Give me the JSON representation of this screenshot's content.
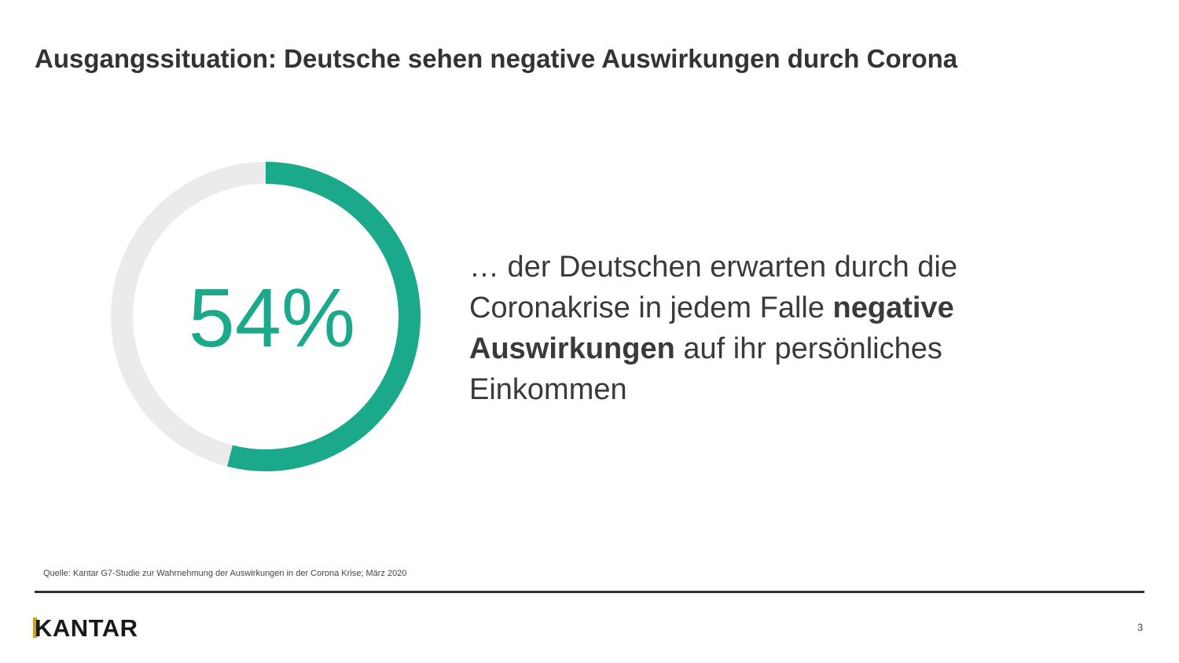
{
  "title": "Ausgangssituation: Deutsche sehen negative Auswirkungen durch Corona",
  "chart_data": {
    "type": "donut",
    "values": [
      54
    ],
    "value_labels": [
      "54%"
    ],
    "color": "#1aa98a",
    "track_color": "#ebebeb"
  },
  "text": {
    "lines": [
      [
        {
          "text": "… der Deutschen erwarten durch die",
          "bold": false
        }
      ],
      [
        {
          "text": "Coronakrise in jedem Falle ",
          "bold": false
        },
        {
          "text": "negative",
          "bold": true
        }
      ],
      [
        {
          "text": "Auswirkungen",
          "bold": true
        },
        {
          "text": " auf ihr persönliches",
          "bold": false
        }
      ],
      [
        {
          "text": "Einkommen",
          "bold": false
        }
      ]
    ]
  },
  "source": "Quelle: Kantar G7-Studie zur Wahrnehmung der Auswirkungen in der Corona Krise; März 2020",
  "logo": "KANTAR",
  "page_number": "3"
}
